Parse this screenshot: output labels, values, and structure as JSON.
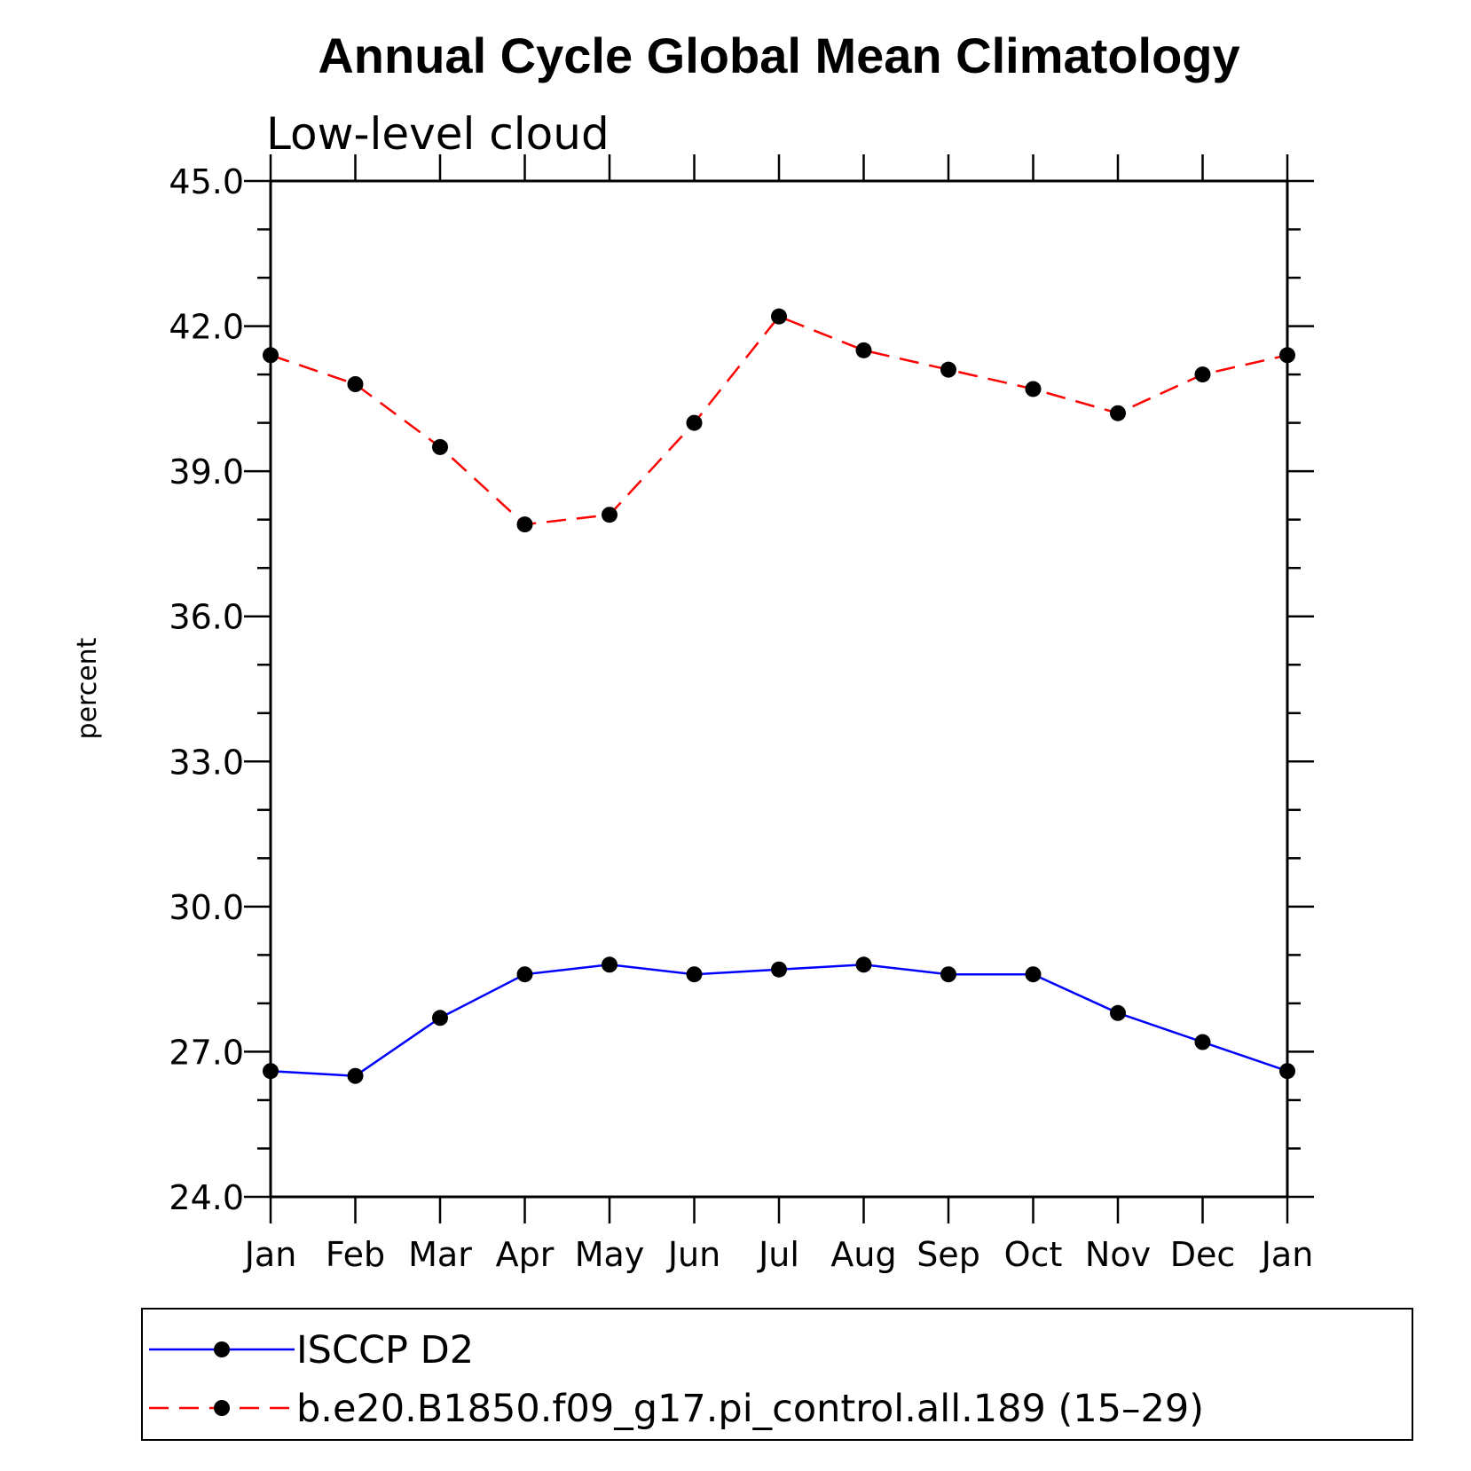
{
  "chart_data": {
    "type": "line",
    "title": "Annual Cycle Global Mean Climatology",
    "subtitle": "Low-level cloud",
    "xlabel": "",
    "ylabel": "percent",
    "categories": [
      "Jan",
      "Feb",
      "Mar",
      "Apr",
      "May",
      "Jun",
      "Jul",
      "Aug",
      "Sep",
      "Oct",
      "Nov",
      "Dec",
      "Jan"
    ],
    "ylim": [
      24.0,
      45.0
    ],
    "yticks": [
      "24.0",
      "27.0",
      "30.0",
      "33.0",
      "36.0",
      "39.0",
      "42.0",
      "45.0"
    ],
    "grid": false,
    "legend_position": "bottom",
    "series": [
      {
        "name": "ISCCP D2",
        "color": "#0000ff",
        "line_style": "solid",
        "marker": "filled-circle",
        "values": [
          26.6,
          26.5,
          27.7,
          28.6,
          28.8,
          28.6,
          28.7,
          28.8,
          28.6,
          28.6,
          27.8,
          27.2,
          26.6
        ]
      },
      {
        "name": "b.e20.B1850.f09_g17.pi_control.all.189 (15–29)",
        "color": "#ff0000",
        "line_style": "dashed",
        "marker": "filled-circle",
        "values": [
          41.4,
          40.8,
          39.5,
          37.9,
          38.1,
          40.0,
          42.2,
          41.5,
          41.1,
          40.7,
          40.2,
          41.0,
          41.4
        ]
      }
    ]
  }
}
